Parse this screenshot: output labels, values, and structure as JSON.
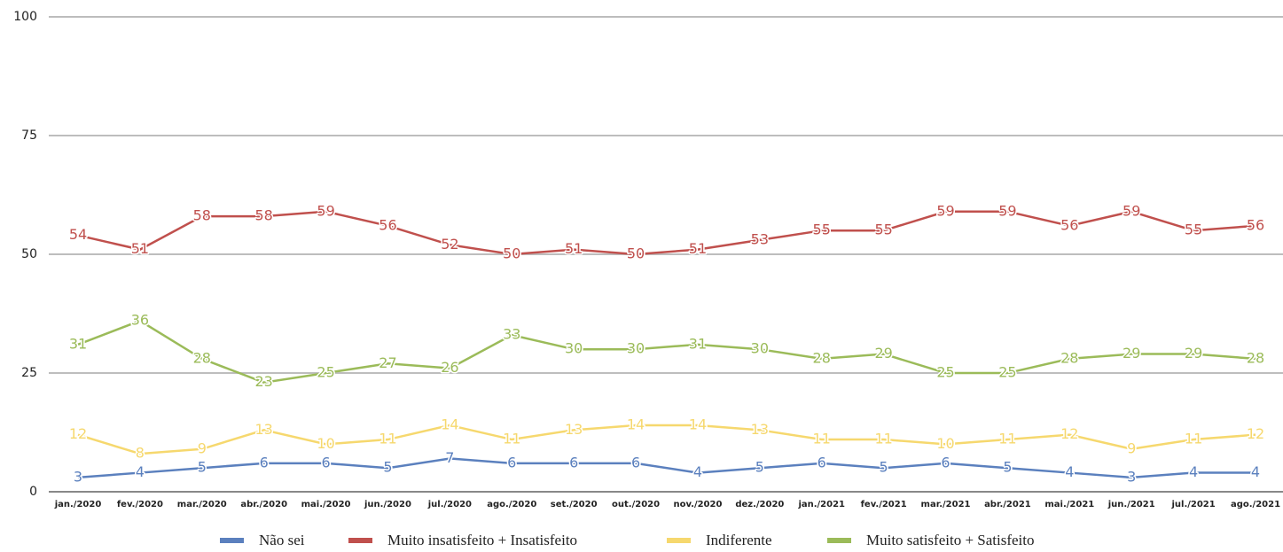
{
  "chart_data": {
    "type": "line",
    "categories": [
      "jan./2020",
      "fev./2020",
      "mar./2020",
      "abr./2020",
      "mai./2020",
      "jun./2020",
      "jul./2020",
      "ago./2020",
      "set./2020",
      "out./2020",
      "nov./2020",
      "dez./2020",
      "jan./2021",
      "fev./2021",
      "mar./2021",
      "abr./2021",
      "mai./2021",
      "jun./2021",
      "jul./2021",
      "ago./2021"
    ],
    "series": [
      {
        "name": "Não sei",
        "color": "#5b80be",
        "values": [
          3,
          4,
          5,
          6,
          6,
          5,
          7,
          6,
          6,
          6,
          4,
          5,
          6,
          5,
          6,
          5,
          4,
          3,
          4,
          4
        ]
      },
      {
        "name": "Muito insatisfeito + Insatisfeito",
        "color": "#c0504d",
        "values": [
          54,
          51,
          58,
          58,
          59,
          56,
          52,
          50,
          51,
          50,
          51,
          53,
          55,
          55,
          59,
          59,
          56,
          59,
          55,
          56
        ]
      },
      {
        "name": "Indiferente",
        "color": "#f6d86e",
        "values": [
          12,
          8,
          9,
          13,
          10,
          11,
          14,
          11,
          13,
          14,
          14,
          13,
          11,
          11,
          10,
          11,
          12,
          9,
          11,
          12
        ]
      },
      {
        "name": "Muito satisfeito + Satisfeito",
        "color": "#9bbb59",
        "values": [
          31,
          36,
          28,
          23,
          25,
          27,
          26,
          33,
          30,
          30,
          31,
          30,
          28,
          29,
          25,
          25,
          28,
          29,
          29,
          28
        ]
      }
    ],
    "ylim": [
      0,
      100
    ],
    "yticks": [
      0,
      25,
      50,
      75,
      100
    ],
    "grid": true,
    "legend": "bottom"
  }
}
